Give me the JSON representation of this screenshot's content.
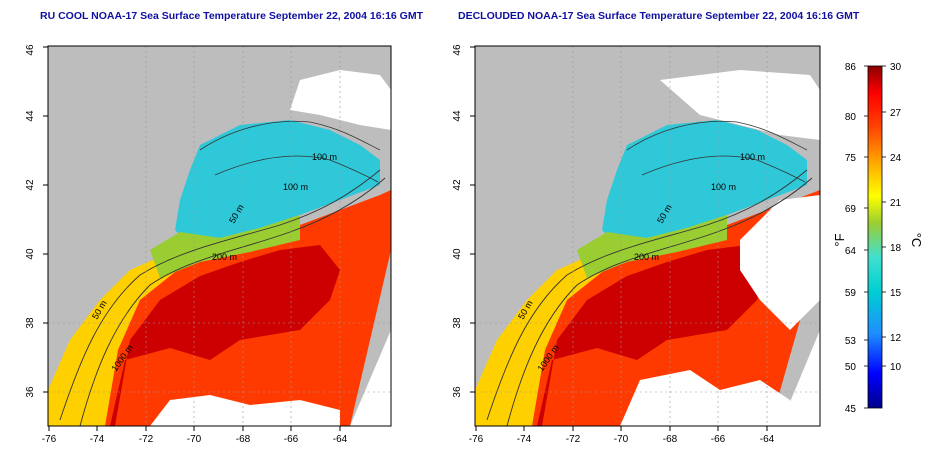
{
  "panels": [
    {
      "title": "RU COOL NOAA-17 Sea Surface Temperature September 22, 2004 16:16 GMT",
      "variant": "raw"
    },
    {
      "title": "DECLOUDED NOAA-17 Sea Surface Temperature September 22, 2004 16:16 GMT",
      "variant": "declouded"
    }
  ],
  "map": {
    "lon_ticks": [
      "-76",
      "-74",
      "-72",
      "-70",
      "-68",
      "-66",
      "-64"
    ],
    "lat_ticks": [
      "36",
      "38",
      "40",
      "42",
      "44",
      "46"
    ],
    "contour_labels": [
      "100 m",
      "100 m",
      "50 m",
      "200 m",
      "50 m",
      "1000 m"
    ],
    "colors": {
      "land": "#bdbdbd",
      "cloud_or_nodata": "#ffffff",
      "frame": "#000000"
    }
  },
  "colorbar": {
    "fahrenheit_ticks": [
      "86",
      "80",
      "75",
      "69",
      "64",
      "59",
      "53",
      "50",
      "45"
    ],
    "celsius_ticks": [
      "30",
      "27",
      "24",
      "21",
      "18",
      "15",
      "12",
      "10"
    ],
    "f_unit": "°F",
    "c_unit": "°C",
    "gradient": [
      "#00008b",
      "#0000ff",
      "#1e90ff",
      "#00ced1",
      "#40e0d0",
      "#7fff00",
      "#ffff00",
      "#ffa500",
      "#ff4500",
      "#ff0000",
      "#8b0000"
    ]
  }
}
